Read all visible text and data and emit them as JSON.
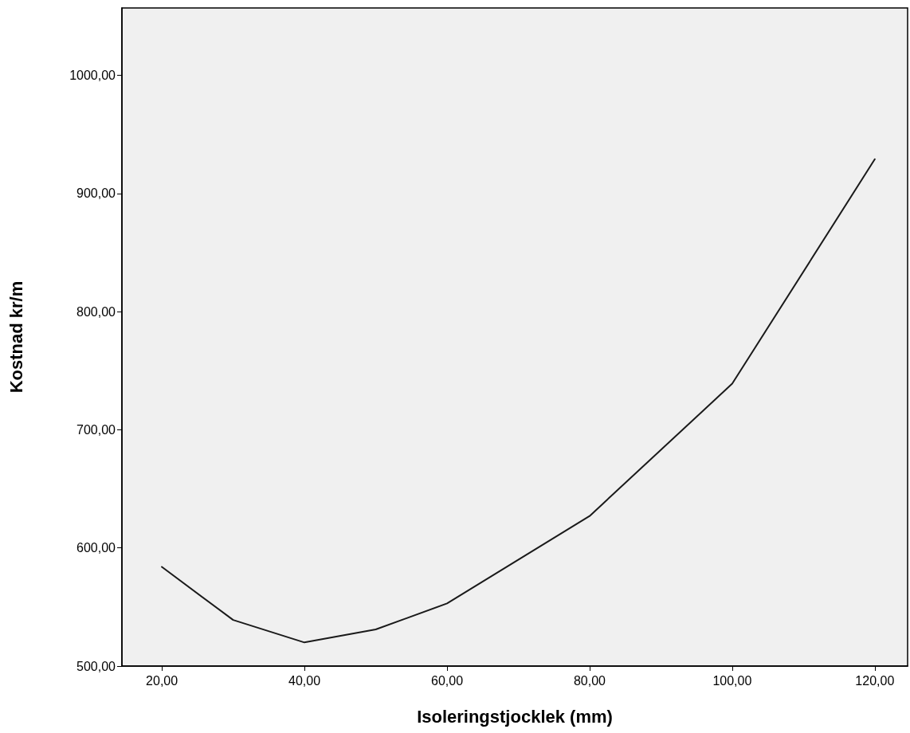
{
  "chart_data": {
    "type": "line",
    "xlabel": "Isoleringstjocklek (mm)",
    "ylabel": "Kostnad kr/m",
    "x": [
      20,
      30,
      40,
      50,
      60,
      80,
      100,
      120
    ],
    "series": [
      {
        "color": "#1a1a1a",
        "values": [
          584,
          539,
          520,
          531,
          553,
          627,
          739,
          929
        ]
      }
    ],
    "xlim": [
      14.4,
      124.6
    ],
    "ylim": [
      500,
      1057
    ],
    "xticks": [
      {
        "value": 20,
        "label": "20,00"
      },
      {
        "value": 40,
        "label": "40,00"
      },
      {
        "value": 60,
        "label": "60,00"
      },
      {
        "value": 80,
        "label": "80,00"
      },
      {
        "value": 100,
        "label": "100,00"
      },
      {
        "value": 120,
        "label": "120,00"
      }
    ],
    "yticks": [
      {
        "value": 500,
        "label": "500,00"
      },
      {
        "value": 600,
        "label": "600,00"
      },
      {
        "value": 700,
        "label": "700,00"
      },
      {
        "value": 800,
        "label": "800,00"
      },
      {
        "value": 900,
        "label": "900,00"
      },
      {
        "value": 1000,
        "label": "1000,00"
      }
    ],
    "grid": false,
    "marker": "none",
    "line_style": "solid"
  }
}
